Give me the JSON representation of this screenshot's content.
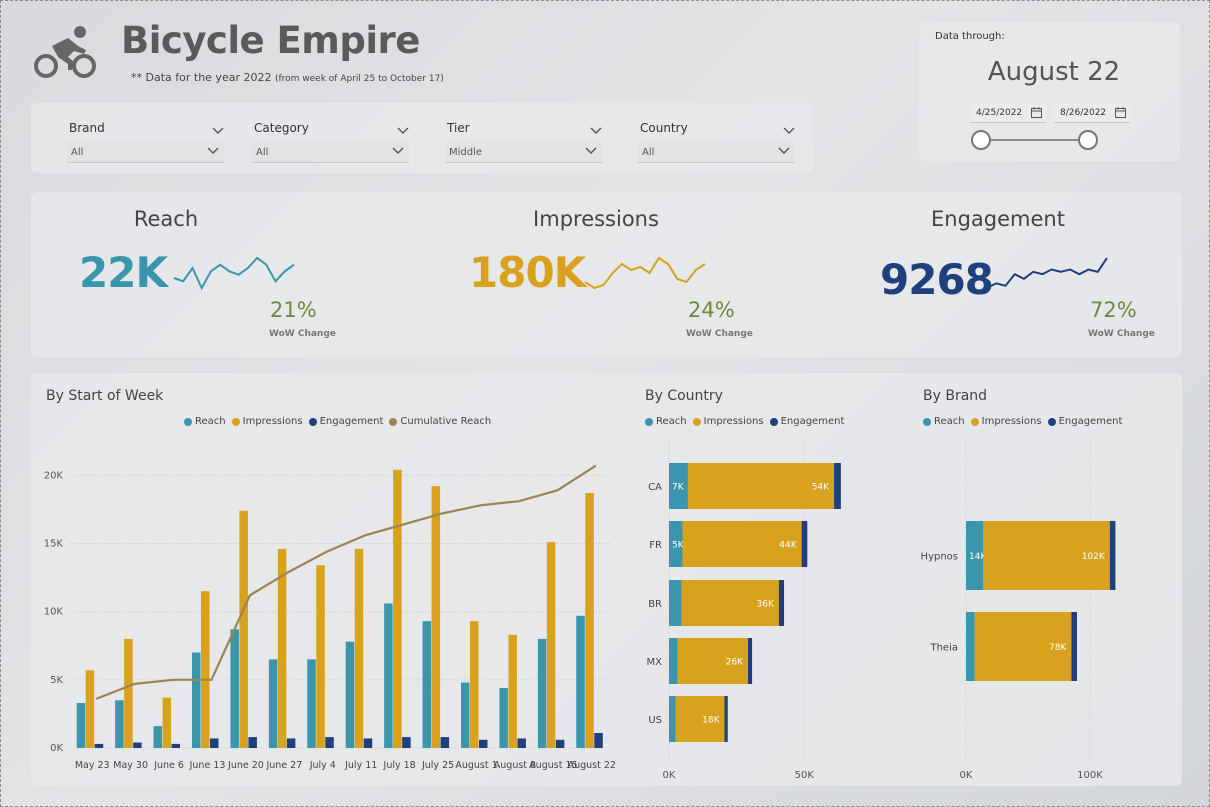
{
  "header": {
    "title": "Bicycle Empire",
    "subtitle": "** Data for the year 2022",
    "subtitle_small": "(from week of April 25 to October 17)"
  },
  "filters": [
    {
      "label": "Brand",
      "value": "All"
    },
    {
      "label": "Category",
      "value": "All"
    },
    {
      "label": "Tier",
      "value": "Middle"
    },
    {
      "label": "Country",
      "value": "All"
    }
  ],
  "date_range": {
    "label": "Data through:",
    "value": "August 22",
    "start": "4/25/2022",
    "end": "8/26/2022"
  },
  "kpis": [
    {
      "title": "Reach",
      "value": "22K",
      "pct": "21%",
      "wow": "WoW Change",
      "color": "#3a96ad",
      "spark": [
        6,
        5,
        9,
        3,
        8,
        10,
        8,
        7,
        9,
        12,
        10,
        5,
        8,
        10
      ]
    },
    {
      "title": "Impressions",
      "value": "180K",
      "pct": "24%",
      "wow": "WoW Change",
      "color": "#d8a21f",
      "spark": [
        5,
        3,
        4,
        8,
        11,
        9,
        10,
        8,
        13,
        11,
        6,
        5,
        9,
        11
      ]
    },
    {
      "title": "Engagement",
      "value": "9268",
      "pct": "72%",
      "wow": "WoW Change",
      "color": "#203f7d",
      "spark": [
        3,
        5,
        4,
        9,
        7,
        10,
        9,
        11,
        10,
        11,
        9,
        11,
        10,
        16
      ]
    }
  ],
  "colors": {
    "reach": "#3a96ad",
    "impressions": "#d8a21f",
    "engagement": "#203f7d",
    "cumulative": "#9c8455"
  },
  "chart_data": [
    {
      "type": "bar",
      "title": "By Start of Week",
      "categories": [
        "May 23",
        "May 30",
        "June 6",
        "June 13",
        "June 20",
        "June 27",
        "July 4",
        "July 11",
        "July 18",
        "July 25",
        "August 1",
        "August 8",
        "August 15",
        "August 22"
      ],
      "series": [
        {
          "name": "Reach",
          "values": [
            3300,
            3500,
            1600,
            7000,
            8700,
            6500,
            6500,
            7800,
            10600,
            9300,
            4800,
            4400,
            8000,
            9700
          ]
        },
        {
          "name": "Impressions",
          "values": [
            5700,
            8000,
            3700,
            11500,
            17400,
            14600,
            13400,
            14600,
            20400,
            19200,
            9300,
            8300,
            15100,
            18700
          ]
        },
        {
          "name": "Engagement",
          "values": [
            300,
            400,
            300,
            700,
            800,
            700,
            800,
            700,
            800,
            800,
            600,
            700,
            600,
            1100
          ]
        },
        {
          "name": "Cumulative Reach",
          "values": [
            3600,
            4700,
            5000,
            5000,
            11200,
            12900,
            14400,
            15600,
            16400,
            17200,
            17800,
            18100,
            18900,
            20700
          ]
        }
      ],
      "yticks": [
        "0K",
        "5K",
        "10K",
        "15K",
        "20K"
      ],
      "ylim": [
        0,
        22000
      ],
      "legend": "top",
      "grid": true
    },
    {
      "type": "bar",
      "orientation": "horizontal",
      "stacked": true,
      "title": "By Country",
      "categories": [
        "CA",
        "FR",
        "BR",
        "MX",
        "US"
      ],
      "series": [
        {
          "name": "Reach",
          "values": [
            7000,
            5000,
            4600,
            3200,
            2500
          ],
          "labels": [
            "7K",
            "5K",
            "",
            "",
            ""
          ]
        },
        {
          "name": "Impressions",
          "values": [
            54000,
            44000,
            36000,
            26000,
            18000
          ],
          "labels": [
            "54K",
            "44K",
            "36K",
            "26K",
            "18K"
          ]
        },
        {
          "name": "Engagement",
          "values": [
            2500,
            2100,
            1900,
            1500,
            1200
          ],
          "labels": [
            "",
            "",
            "",
            "",
            ""
          ]
        }
      ],
      "xticks": [
        "0K",
        "50K"
      ],
      "xlim": [
        0,
        75000
      ],
      "legend": "top",
      "grid": true
    },
    {
      "type": "bar",
      "orientation": "horizontal",
      "stacked": true,
      "title": "By Brand",
      "categories": [
        "Hypnos",
        "Theia"
      ],
      "series": [
        {
          "name": "Reach",
          "values": [
            14000,
            7000
          ],
          "labels": [
            "14K",
            ""
          ]
        },
        {
          "name": "Impressions",
          "values": [
            102000,
            78000
          ],
          "labels": [
            "102K",
            "78K"
          ]
        },
        {
          "name": "Engagement",
          "values": [
            4500,
            4500
          ],
          "labels": [
            "",
            ""
          ]
        }
      ],
      "xticks": [
        "0K",
        "100K"
      ],
      "xlim": [
        0,
        150000
      ],
      "legend": "top",
      "grid": true
    }
  ]
}
